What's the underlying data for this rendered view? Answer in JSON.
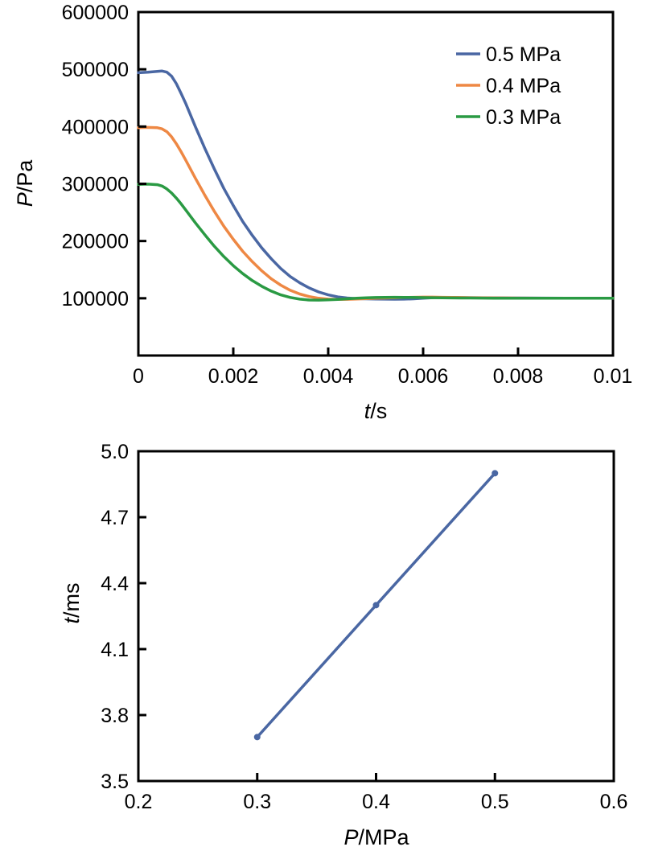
{
  "chart_data": [
    {
      "type": "line",
      "title": "",
      "xlabel_var": "t",
      "xlabel_unit": "/s",
      "ylabel_var": "P",
      "ylabel_unit": "/Pa",
      "xlim": [
        0,
        0.01
      ],
      "ylim": [
        0,
        600000
      ],
      "x_ticks": [
        0,
        0.002,
        0.004,
        0.006,
        0.008,
        0.01
      ],
      "x_tick_labels": [
        "0",
        "0.002",
        "0.004",
        "0.006",
        "0.008",
        "0.01"
      ],
      "y_ticks": [
        100000,
        200000,
        300000,
        400000,
        500000,
        600000
      ],
      "y_tick_labels": [
        "100000",
        "200000",
        "300000",
        "400000",
        "500000",
        "600000"
      ],
      "grid": false,
      "legend_position": "top-right",
      "series": [
        {
          "name": "0.5 MPa",
          "color": "#4a67a3",
          "x": [
            0,
            0.0002,
            0.0004,
            0.0005,
            0.0006,
            0.0007,
            0.0008,
            0.0009,
            0.001,
            0.0012,
            0.0014,
            0.0016,
            0.0018,
            0.002,
            0.0022,
            0.0024,
            0.0026,
            0.0028,
            0.003,
            0.0032,
            0.0034,
            0.0036,
            0.0038,
            0.004,
            0.0042,
            0.0044,
            0.0046,
            0.0048,
            0.005,
            0.0052,
            0.0054,
            0.0056,
            0.0058,
            0.006,
            0.0062,
            0.0064,
            0.0066,
            0.0068,
            0.007,
            0.0075,
            0.008,
            0.0085,
            0.009,
            0.0095,
            0.01
          ],
          "y": [
            494000,
            495000,
            496500,
            497000,
            495000,
            488000,
            475000,
            458000,
            440000,
            400000,
            362000,
            326000,
            292000,
            262000,
            234000,
            210000,
            188000,
            169000,
            152000,
            138000,
            127000,
            118000,
            111000,
            106000,
            102500,
            100500,
            99500,
            99000,
            98800,
            98500,
            98300,
            98500,
            99000,
            100000,
            101000,
            101500,
            101500,
            101200,
            101000,
            100800,
            100500,
            100300,
            100200,
            100100,
            100000
          ]
        },
        {
          "name": "0.4 MPa",
          "color": "#ee8844",
          "x": [
            0,
            0.0002,
            0.0004,
            0.0005,
            0.0006,
            0.0007,
            0.0008,
            0.0009,
            0.001,
            0.0012,
            0.0014,
            0.0016,
            0.0018,
            0.002,
            0.0022,
            0.0024,
            0.0026,
            0.0028,
            0.003,
            0.0032,
            0.0034,
            0.0036,
            0.0038,
            0.004,
            0.0042,
            0.0044,
            0.0046,
            0.0048,
            0.005,
            0.0052,
            0.0054,
            0.0056,
            0.0058,
            0.006,
            0.0062,
            0.0064,
            0.0066,
            0.0068,
            0.007,
            0.0075,
            0.008,
            0.0085,
            0.009,
            0.0095,
            0.01
          ],
          "y": [
            398000,
            398500,
            398000,
            396000,
            391000,
            382000,
            370000,
            356000,
            341000,
            310000,
            280000,
            252000,
            226000,
            203000,
            182000,
            164000,
            148000,
            134000,
            123000,
            114000,
            107500,
            103000,
            100000,
            98500,
            98000,
            98200,
            98800,
            99500,
            100000,
            100500,
            101000,
            101500,
            101800,
            102000,
            102000,
            101800,
            101600,
            101300,
            101000,
            100600,
            100300,
            100200,
            100100,
            100050,
            100000
          ]
        },
        {
          "name": "0.3 MPa",
          "color": "#2a9a43",
          "x": [
            0,
            0.0002,
            0.0004,
            0.0005,
            0.0006,
            0.0007,
            0.0008,
            0.0009,
            0.001,
            0.0012,
            0.0014,
            0.0016,
            0.0018,
            0.002,
            0.0022,
            0.0024,
            0.0026,
            0.0028,
            0.003,
            0.0032,
            0.0034,
            0.0036,
            0.0038,
            0.004,
            0.0042,
            0.0044,
            0.0046,
            0.0048,
            0.005,
            0.0052,
            0.0054,
            0.0056,
            0.0058,
            0.006,
            0.0062,
            0.0064,
            0.0066,
            0.0068,
            0.007,
            0.0075,
            0.008,
            0.0085,
            0.009,
            0.0095,
            0.01
          ],
          "y": [
            299000,
            299500,
            298500,
            296000,
            291000,
            284000,
            275000,
            265000,
            254000,
            232000,
            211000,
            191000,
            173000,
            157000,
            143000,
            131000,
            121000,
            112500,
            106000,
            101500,
            98500,
            97000,
            96800,
            97200,
            98000,
            99000,
            100000,
            100800,
            101300,
            101600,
            101700,
            101600,
            101400,
            101200,
            101000,
            100800,
            100600,
            100500,
            100400,
            100200,
            100100,
            100050,
            100000,
            100000,
            100000
          ]
        }
      ]
    },
    {
      "type": "line",
      "title": "",
      "xlabel_var": "P",
      "xlabel_unit": "/MPa",
      "ylabel_var": "t",
      "ylabel_unit": "/ms",
      "xlim": [
        0.2,
        0.6
      ],
      "ylim": [
        3.5,
        5.0
      ],
      "x_ticks": [
        0.2,
        0.3,
        0.4,
        0.5,
        0.6
      ],
      "x_tick_labels": [
        "0.2",
        "0.3",
        "0.4",
        "0.5",
        "0.6"
      ],
      "y_ticks": [
        3.5,
        3.8,
        4.1,
        4.4,
        4.7,
        5.0
      ],
      "y_tick_labels": [
        "3.5",
        "3.8",
        "4.1",
        "4.4",
        "4.7",
        "5.0"
      ],
      "grid": false,
      "series": [
        {
          "color": "#4a67a3",
          "x": [
            0.3,
            0.4,
            0.5
          ],
          "y": [
            3.7,
            4.3,
            4.9
          ]
        }
      ]
    }
  ]
}
